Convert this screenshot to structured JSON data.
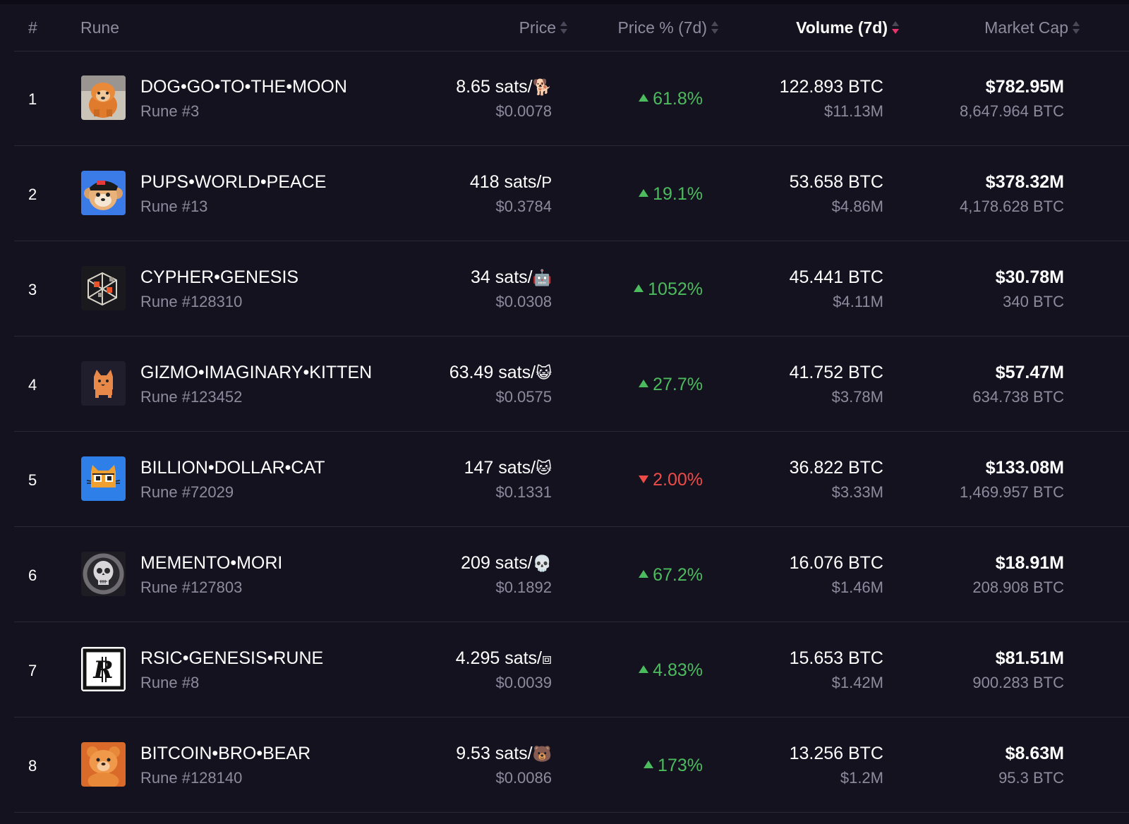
{
  "header": {
    "rank": "#",
    "rune": "Rune",
    "price": "Price",
    "price_pct": "Price % (7d)",
    "volume": "Volume (7d)",
    "market_cap": "Market Cap"
  },
  "colors": {
    "background": "#14121f",
    "up": "#4cbb5e",
    "down": "#ee4b48",
    "sort_active": "#e8336d"
  },
  "rows": [
    {
      "rank": "1",
      "name": "DOG•GO•TO•THE•MOON",
      "rune_no": "Rune #3",
      "price": "8.65 sats/",
      "price_symbol": "🐕",
      "price_usd": "$0.0078",
      "pct": "61.8%",
      "dir": "up",
      "vol_btc": "122.893 BTC",
      "vol_usd": "$11.13M",
      "mc_usd": "$782.95M",
      "mc_btc": "8,647.964 BTC",
      "icon": "dog-icon"
    },
    {
      "rank": "2",
      "name": "PUPS•WORLD•PEACE",
      "rune_no": "Rune #13",
      "price": "418 sats/",
      "price_symbol": "P",
      "price_usd": "$0.3784",
      "pct": "19.1%",
      "dir": "up",
      "vol_btc": "53.658 BTC",
      "vol_usd": "$4.86M",
      "mc_usd": "$378.32M",
      "mc_btc": "4,178.628 BTC",
      "icon": "pups-icon"
    },
    {
      "rank": "3",
      "name": "CYPHER•GENESIS",
      "rune_no": "Rune #128310",
      "price": "34 sats/",
      "price_symbol": "🤖",
      "price_usd": "$0.0308",
      "pct": "1052%",
      "dir": "up",
      "vol_btc": "45.441 BTC",
      "vol_usd": "$4.11M",
      "mc_usd": "$30.78M",
      "mc_btc": "340 BTC",
      "icon": "cypher-icon"
    },
    {
      "rank": "4",
      "name": "GIZMO•IMAGINARY•KITTEN",
      "rune_no": "Rune #123452",
      "price": "63.49 sats/",
      "price_symbol": "😺",
      "price_usd": "$0.0575",
      "pct": "27.7%",
      "dir": "up",
      "vol_btc": "41.752 BTC",
      "vol_usd": "$3.78M",
      "mc_usd": "$57.47M",
      "mc_btc": "634.738 BTC",
      "icon": "kitten-icon"
    },
    {
      "rank": "5",
      "name": "BILLION•DOLLAR•CAT",
      "rune_no": "Rune #72029",
      "price": "147 sats/",
      "price_symbol": "🐱",
      "price_usd": "$0.1331",
      "pct": "2.00%",
      "dir": "down",
      "vol_btc": "36.822 BTC",
      "vol_usd": "$3.33M",
      "mc_usd": "$133.08M",
      "mc_btc": "1,469.957 BTC",
      "icon": "cat-icon"
    },
    {
      "rank": "6",
      "name": "MEMENTO•MORI",
      "rune_no": "Rune #127803",
      "price": "209 sats/",
      "price_symbol": "💀",
      "price_usd": "$0.1892",
      "pct": "67.2%",
      "dir": "up",
      "vol_btc": "16.076 BTC",
      "vol_usd": "$1.46M",
      "mc_usd": "$18.91M",
      "mc_btc": "208.908 BTC",
      "icon": "skull-icon"
    },
    {
      "rank": "7",
      "name": "RSIC•GENESIS•RUNE",
      "rune_no": "Rune #8",
      "price": "4.295 sats/",
      "price_symbol": "⧈",
      "price_usd": "$0.0039",
      "pct": "4.83%",
      "dir": "up",
      "vol_btc": "15.653 BTC",
      "vol_usd": "$1.42M",
      "mc_usd": "$81.51M",
      "mc_btc": "900.283 BTC",
      "icon": "rsic-icon"
    },
    {
      "rank": "8",
      "name": "BITCOIN•BRO•BEAR",
      "rune_no": "Rune #128140",
      "price": "9.53 sats/",
      "price_symbol": "🐻",
      "price_usd": "$0.0086",
      "pct": "173%",
      "dir": "up",
      "vol_btc": "13.256 BTC",
      "vol_usd": "$1.2M",
      "mc_usd": "$8.63M",
      "mc_btc": "95.3 BTC",
      "icon": "bear-icon"
    }
  ]
}
